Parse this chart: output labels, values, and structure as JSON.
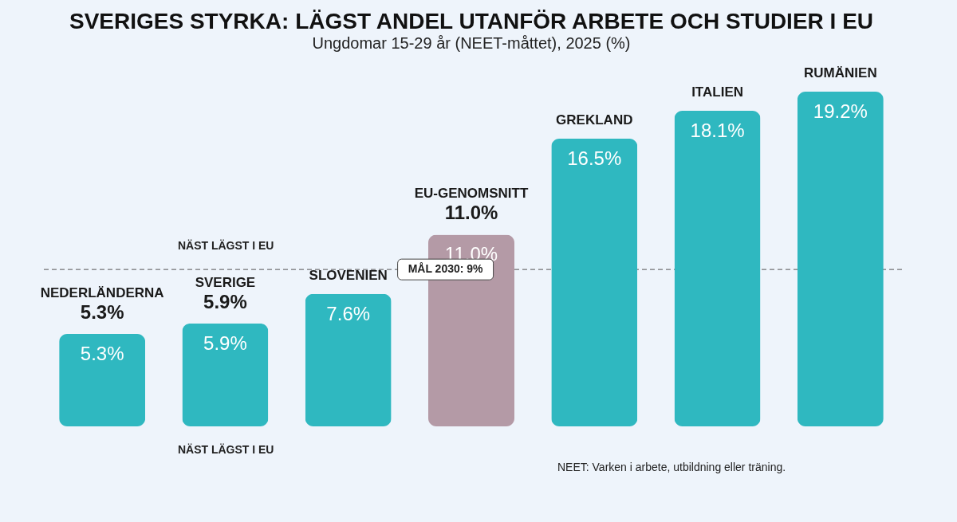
{
  "chart_data": {
    "type": "bar",
    "title": "SVERIGES STYRKA: LÄGST ANDEL UTANFÖR ARBETE OCH STUDIER I EU",
    "subtitle": "Ungdomar 15-29 år (NEET-måttet), 2025 (%)",
    "categories": [
      "NEDERLÄNDERNA",
      "SVERIGE",
      "SLOVENIEN",
      "EU-GENOMSNITT",
      "GREKLAND",
      "ITALIEN",
      "RUMÄNIEN"
    ],
    "values": [
      5.3,
      5.9,
      7.6,
      11.0,
      16.5,
      18.1,
      19.2
    ],
    "colors": [
      "#2fb8c0",
      "#2fb8c0",
      "#2fb8c0",
      "#b49aa6",
      "#2fb8c0",
      "#2fb8c0",
      "#2fb8c0"
    ],
    "value_labels": [
      "5.3%",
      "5.9%",
      "7.6%",
      "11.0%",
      "16.5%",
      "18.1%",
      "19.2%"
    ],
    "ref_lines": [
      {
        "axis": "y",
        "value": 9,
        "label": "MÅL 2030: 9%",
        "line_style": "dashed",
        "color": "#555555"
      }
    ],
    "annotations": [
      {
        "text": "5.3%",
        "x": "NEDERLÄNDERNA",
        "y": 5.3
      },
      {
        "text": "5.9%",
        "x": "SVERIGE",
        "y": 5.9
      },
      {
        "text": "11.0%",
        "x": "EU-GENOMSNITT",
        "y": 11.0
      },
      "NÄST LÄGST I EU",
      "NÄST LÄGST I EU",
      "NEET: Varken i arbete, utbildning eller träning."
    ]
  }
}
